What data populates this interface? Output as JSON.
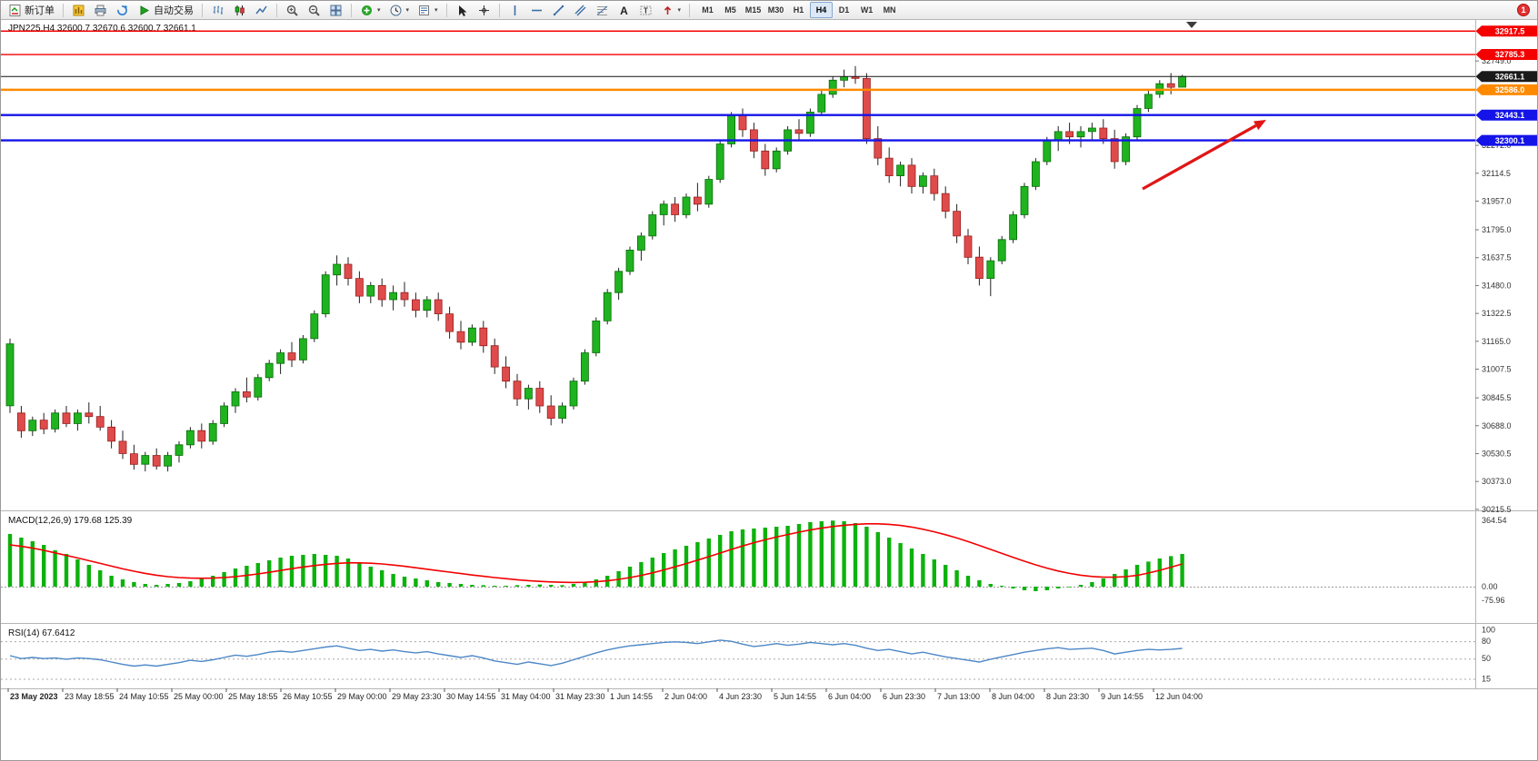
{
  "toolbar": {
    "new_order_label": "新订单",
    "auto_trading_label": "自动交易",
    "timeframes": [
      "M1",
      "M5",
      "M15",
      "M30",
      "H1",
      "H4",
      "D1",
      "W1",
      "MN"
    ],
    "active_timeframe": "H4",
    "notification_badge": "1"
  },
  "annotations": {
    "trend_arrow": {
      "color": "#e01616",
      "direction": "up-right"
    }
  },
  "chart_data": {
    "type": "candlestick",
    "symbol": "JPN225",
    "timeframe": "H4",
    "title": "JPN225,H4 32600.7 32670.6 32600.7 32661.1",
    "last_ohlc": {
      "open": 32600.7,
      "high": 32670.6,
      "low": 32600.7,
      "close": 32661.1
    },
    "colors": {
      "up": "#1fb31f",
      "down": "#df4b4b",
      "wick": "#222222",
      "background": "#ffffff"
    },
    "price_axis": {
      "min": 30215.5,
      "max": 32917.5,
      "labels": [
        "32749.0",
        "32272.0",
        "32114.5",
        "31957.0",
        "31795.0",
        "31637.5",
        "31480.0",
        "31322.5",
        "31165.0",
        "31007.5",
        "30845.5",
        "30688.0",
        "30530.5",
        "30373.0",
        "30215.5"
      ]
    },
    "horizontal_lines": [
      {
        "price": 32917.5,
        "label": "32917.5",
        "color": "#f40000",
        "badge": "#f40000",
        "width": 1.4
      },
      {
        "price": 32785.3,
        "label": "32785.3",
        "color": "#f40000",
        "badge": "#f40000",
        "width": 1.4
      },
      {
        "price": 32661.1,
        "label": "32661.1",
        "color": "#151515",
        "badge": "#1a1a1a",
        "width": 1
      },
      {
        "price": 32586.0,
        "label": "32586.0",
        "color": "#ff8a00",
        "badge": "#ff8a00",
        "width": 2.4
      },
      {
        "price": 32443.1,
        "label": "32443.1",
        "color": "#1414e8",
        "badge": "#1414e8",
        "width": 2.4
      },
      {
        "price": 32300.1,
        "label": "32300.1",
        "color": "#1414e8",
        "badge": "#1414e8",
        "width": 2.4
      }
    ],
    "time_labels": [
      "23 May 2023",
      "23 May 18:55",
      "24 May 10:55",
      "25 May 00:00",
      "25 May 18:55",
      "26 May 10:55",
      "29 May 00:00",
      "29 May 23:30",
      "30 May 14:55",
      "31 May 04:00",
      "31 May 23:30",
      "1 Jun 14:55",
      "2 Jun 04:00",
      "4 Jun 23:30",
      "5 Jun 14:55",
      "6 Jun 04:00",
      "6 Jun 23:30",
      "7 Jun 13:00",
      "8 Jun 04:00",
      "8 Jun 23:30",
      "9 Jun 14:55",
      "12 Jun 04:00"
    ],
    "ohlc": [
      [
        30800,
        31180,
        30760,
        31150
      ],
      [
        30760,
        30800,
        30620,
        30660
      ],
      [
        30660,
        30740,
        30630,
        30720
      ],
      [
        30720,
        30760,
        30640,
        30670
      ],
      [
        30670,
        30780,
        30650,
        30760
      ],
      [
        30760,
        30800,
        30680,
        30700
      ],
      [
        30700,
        30780,
        30660,
        30760
      ],
      [
        30760,
        30820,
        30700,
        30740
      ],
      [
        30740,
        30800,
        30660,
        30680
      ],
      [
        30680,
        30720,
        30560,
        30600
      ],
      [
        30600,
        30660,
        30500,
        30530
      ],
      [
        30530,
        30580,
        30440,
        30470
      ],
      [
        30470,
        30540,
        30430,
        30520
      ],
      [
        30520,
        30560,
        30440,
        30460
      ],
      [
        30460,
        30540,
        30430,
        30520
      ],
      [
        30520,
        30600,
        30480,
        30580
      ],
      [
        30580,
        30680,
        30560,
        30660
      ],
      [
        30660,
        30700,
        30560,
        30600
      ],
      [
        30600,
        30720,
        30580,
        30700
      ],
      [
        30700,
        30820,
        30680,
        30800
      ],
      [
        30800,
        30900,
        30760,
        30880
      ],
      [
        30880,
        30960,
        30820,
        30850
      ],
      [
        30850,
        30980,
        30830,
        30960
      ],
      [
        30960,
        31060,
        30940,
        31040
      ],
      [
        31040,
        31120,
        30980,
        31100
      ],
      [
        31100,
        31160,
        31020,
        31060
      ],
      [
        31060,
        31200,
        31040,
        31180
      ],
      [
        31180,
        31340,
        31160,
        31320
      ],
      [
        31320,
        31560,
        31300,
        31540
      ],
      [
        31540,
        31650,
        31480,
        31600
      ],
      [
        31600,
        31640,
        31480,
        31520
      ],
      [
        31520,
        31560,
        31380,
        31420
      ],
      [
        31420,
        31500,
        31380,
        31480
      ],
      [
        31480,
        31520,
        31360,
        31400
      ],
      [
        31400,
        31480,
        31340,
        31440
      ],
      [
        31440,
        31500,
        31360,
        31400
      ],
      [
        31400,
        31440,
        31300,
        31340
      ],
      [
        31340,
        31420,
        31300,
        31400
      ],
      [
        31400,
        31440,
        31280,
        31320
      ],
      [
        31320,
        31360,
        31180,
        31220
      ],
      [
        31220,
        31280,
        31120,
        31160
      ],
      [
        31160,
        31260,
        31140,
        31240
      ],
      [
        31240,
        31280,
        31100,
        31140
      ],
      [
        31140,
        31180,
        30980,
        31020
      ],
      [
        31020,
        31080,
        30900,
        30940
      ],
      [
        30940,
        30980,
        30800,
        30840
      ],
      [
        30840,
        30920,
        30780,
        30900
      ],
      [
        30900,
        30940,
        30760,
        30800
      ],
      [
        30800,
        30860,
        30690,
        30730
      ],
      [
        30730,
        30820,
        30700,
        30800
      ],
      [
        30800,
        30960,
        30780,
        30940
      ],
      [
        30940,
        31120,
        30920,
        31100
      ],
      [
        31100,
        31300,
        31080,
        31280
      ],
      [
        31280,
        31460,
        31260,
        31440
      ],
      [
        31440,
        31580,
        31400,
        31560
      ],
      [
        31560,
        31700,
        31540,
        31680
      ],
      [
        31680,
        31780,
        31620,
        31760
      ],
      [
        31760,
        31900,
        31740,
        31880
      ],
      [
        31880,
        31960,
        31820,
        31940
      ],
      [
        31940,
        31980,
        31840,
        31880
      ],
      [
        31880,
        32000,
        31860,
        31980
      ],
      [
        31980,
        32060,
        31900,
        31940
      ],
      [
        31940,
        32100,
        31920,
        32080
      ],
      [
        32080,
        32300,
        32060,
        32280
      ],
      [
        32280,
        32460,
        32260,
        32440
      ],
      [
        32440,
        32480,
        32320,
        32360
      ],
      [
        32360,
        32400,
        32200,
        32240
      ],
      [
        32240,
        32280,
        32100,
        32140
      ],
      [
        32140,
        32260,
        32120,
        32240
      ],
      [
        32240,
        32380,
        32220,
        32360
      ],
      [
        32360,
        32420,
        32300,
        32340
      ],
      [
        32340,
        32480,
        32320,
        32460
      ],
      [
        32460,
        32580,
        32440,
        32560
      ],
      [
        32560,
        32660,
        32540,
        32640
      ],
      [
        32640,
        32700,
        32600,
        32660
      ],
      [
        32660,
        32720,
        32620,
        32650
      ],
      [
        32650,
        32680,
        32280,
        32310
      ],
      [
        32310,
        32380,
        32160,
        32200
      ],
      [
        32200,
        32260,
        32060,
        32100
      ],
      [
        32100,
        32180,
        32040,
        32160
      ],
      [
        32160,
        32200,
        32000,
        32040
      ],
      [
        32040,
        32120,
        32000,
        32100
      ],
      [
        32100,
        32140,
        31960,
        32000
      ],
      [
        32000,
        32040,
        31860,
        31900
      ],
      [
        31900,
        31940,
        31720,
        31760
      ],
      [
        31760,
        31800,
        31600,
        31640
      ],
      [
        31640,
        31700,
        31480,
        31520
      ],
      [
        31520,
        31640,
        31420,
        31620
      ],
      [
        31620,
        31760,
        31600,
        31740
      ],
      [
        31740,
        31900,
        31720,
        31880
      ],
      [
        31880,
        32060,
        31860,
        32040
      ],
      [
        32040,
        32200,
        32020,
        32180
      ],
      [
        32180,
        32320,
        32160,
        32300
      ],
      [
        32300,
        32380,
        32240,
        32350
      ],
      [
        32350,
        32400,
        32280,
        32320
      ],
      [
        32320,
        32380,
        32260,
        32350
      ],
      [
        32350,
        32400,
        32300,
        32370
      ],
      [
        32370,
        32420,
        32280,
        32310
      ],
      [
        32310,
        32360,
        32140,
        32180
      ],
      [
        32180,
        32340,
        32160,
        32320
      ],
      [
        32320,
        32500,
        32300,
        32480
      ],
      [
        32480,
        32580,
        32460,
        32560
      ],
      [
        32560,
        32640,
        32540,
        32620
      ],
      [
        32620,
        32680,
        32560,
        32600
      ],
      [
        32600.7,
        32670.6,
        32600.7,
        32661.1
      ]
    ],
    "indicators": [
      {
        "name": "MACD",
        "label": "MACD(12,26,9) 179.68 125.39",
        "params": "12,26,9",
        "current_values": [
          179.68,
          125.39
        ],
        "axis_labels": [
          "364.54",
          "0.00",
          "-75.96"
        ],
        "histogram_color": "#0cb20c",
        "signal_color": "#f20000",
        "histogram": [
          290,
          270,
          250,
          230,
          200,
          180,
          150,
          120,
          90,
          60,
          40,
          25,
          15,
          10,
          15,
          20,
          30,
          45,
          60,
          80,
          100,
          115,
          130,
          145,
          160,
          170,
          175,
          180,
          175,
          170,
          155,
          135,
          110,
          90,
          70,
          55,
          45,
          35,
          25,
          20,
          15,
          10,
          8,
          5,
          5,
          8,
          10,
          12,
          10,
          8,
          15,
          25,
          40,
          60,
          85,
          110,
          135,
          160,
          185,
          205,
          225,
          245,
          265,
          285,
          305,
          315,
          320,
          325,
          330,
          335,
          345,
          355,
          360,
          364,
          360,
          350,
          330,
          300,
          270,
          240,
          210,
          180,
          150,
          120,
          90,
          60,
          35,
          15,
          5,
          -10,
          -20,
          -25,
          -20,
          -10,
          0,
          10,
          25,
          45,
          70,
          95,
          120,
          138,
          155,
          168,
          180
        ],
        "signal": [
          230,
          222,
          212,
          200,
          186,
          172,
          158,
          143,
          128,
          113,
          98,
          85,
          73,
          63,
          55,
          50,
          47,
          46,
          47,
          50,
          55,
          62,
          70,
          79,
          89,
          99,
          108,
          116,
          123,
          128,
          131,
          131,
          129,
          125,
          119,
          112,
          104,
          96,
          88,
          80,
          72,
          64,
          57,
          50,
          44,
          38,
          33,
          29,
          26,
          24,
          23,
          24,
          27,
          32,
          40,
          50,
          62,
          76,
          92,
          109,
          127,
          146,
          165,
          185,
          205,
          224,
          242,
          258,
          273,
          287,
          300,
          312,
          322,
          331,
          338,
          343,
          346,
          346,
          343,
          337,
          328,
          316,
          302,
          286,
          268,
          248,
          227,
          205,
          183,
          161,
          140,
          120,
          102,
          86,
          73,
          63,
          56,
          52,
          52,
          55,
          62,
          75,
          90,
          107,
          125
        ]
      },
      {
        "name": "RSI",
        "label": "RSI(14) 67.6412",
        "params": "14",
        "current_value": 67.6412,
        "axis_labels": [
          "100",
          "80",
          "50",
          "15"
        ],
        "levels": [
          80,
          50,
          15
        ],
        "color": "#4d87c7",
        "values": [
          55,
          50,
          52,
          50,
          51,
          49,
          51,
          50,
          48,
          44,
          40,
          37,
          39,
          37,
          40,
          43,
          47,
          45,
          48,
          52,
          56,
          54,
          57,
          61,
          63,
          61,
          64,
          67,
          70,
          72,
          68,
          64,
          66,
          63,
          65,
          62,
          60,
          62,
          58,
          55,
          52,
          55,
          51,
          46,
          43,
          40,
          44,
          41,
          38,
          42,
          48,
          54,
          60,
          65,
          69,
          72,
          74,
          76,
          78,
          79,
          78,
          76,
          79,
          82,
          80,
          75,
          71,
          73,
          76,
          73,
          75,
          78,
          76,
          74,
          76,
          73,
          68,
          64,
          66,
          62,
          58,
          61,
          57,
          53,
          50,
          47,
          44,
          49,
          53,
          57,
          61,
          64,
          67,
          69,
          66,
          67,
          68,
          64,
          58,
          61,
          64,
          66,
          65,
          66,
          67.6
        ]
      }
    ]
  }
}
